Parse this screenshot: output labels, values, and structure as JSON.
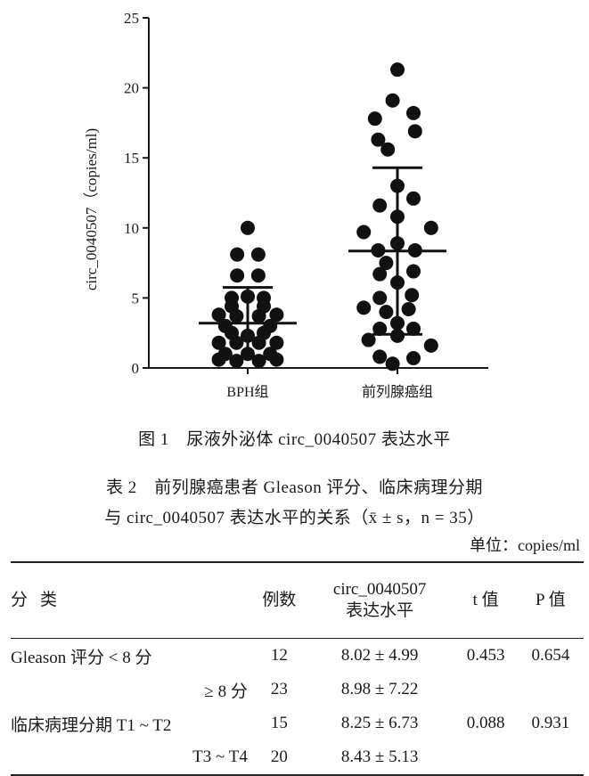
{
  "chart_data": {
    "type": "scatter",
    "ylabel": "circ_0040507（copies/ml)",
    "ylim": [
      0,
      25
    ],
    "yticks": [
      "0",
      "5",
      "10",
      "15",
      "20",
      "25"
    ],
    "categories": [
      "BPH组",
      "前列腺癌组"
    ],
    "groups": [
      {
        "name": "BPH组",
        "mean": 3.2,
        "sd_upper": 5.75,
        "sd_lower": 0.7,
        "points": [
          {
            "dx": 0,
            "y": 10.0
          },
          {
            "dx": -0.33,
            "y": 8.1
          },
          {
            "dx": 0.33,
            "y": 8.1
          },
          {
            "dx": -0.33,
            "y": 6.6
          },
          {
            "dx": 0.33,
            "y": 6.6
          },
          {
            "dx": -0.5,
            "y": 5.0
          },
          {
            "dx": 0.0,
            "y": 5.1
          },
          {
            "dx": 0.5,
            "y": 5.0
          },
          {
            "dx": -0.5,
            "y": 4.4
          },
          {
            "dx": 0.5,
            "y": 4.4
          },
          {
            "dx": -0.9,
            "y": 3.8
          },
          {
            "dx": -0.35,
            "y": 3.7
          },
          {
            "dx": 0.35,
            "y": 3.7
          },
          {
            "dx": 0.9,
            "y": 3.8
          },
          {
            "dx": -0.7,
            "y": 3.0
          },
          {
            "dx": 0.7,
            "y": 3.0
          },
          {
            "dx": -0.5,
            "y": 2.5
          },
          {
            "dx": 0.0,
            "y": 2.3
          },
          {
            "dx": 0.5,
            "y": 2.5
          },
          {
            "dx": -0.9,
            "y": 1.8
          },
          {
            "dx": -0.35,
            "y": 1.8
          },
          {
            "dx": 0.35,
            "y": 1.8
          },
          {
            "dx": 0.9,
            "y": 1.8
          },
          {
            "dx": -0.7,
            "y": 1.0
          },
          {
            "dx": 0.0,
            "y": 1.0
          },
          {
            "dx": 0.7,
            "y": 1.0
          },
          {
            "dx": -0.9,
            "y": 0.6
          },
          {
            "dx": -0.35,
            "y": 0.5
          },
          {
            "dx": 0.35,
            "y": 0.5
          },
          {
            "dx": 0.9,
            "y": 0.6
          }
        ]
      },
      {
        "name": "前列腺癌组",
        "mean": 8.35,
        "sd_upper": 14.3,
        "sd_lower": 2.4,
        "points": [
          {
            "dx": 0,
            "y": 21.3
          },
          {
            "dx": -0.15,
            "y": 19.1
          },
          {
            "dx": -0.7,
            "y": 17.8
          },
          {
            "dx": 0.5,
            "y": 18.2
          },
          {
            "dx": -0.6,
            "y": 16.3
          },
          {
            "dx": 0.55,
            "y": 16.9
          },
          {
            "dx": -0.3,
            "y": 15.6
          },
          {
            "dx": 0.0,
            "y": 13.0
          },
          {
            "dx": -0.55,
            "y": 11.6
          },
          {
            "dx": 0.5,
            "y": 12.1
          },
          {
            "dx": 0.0,
            "y": 10.8
          },
          {
            "dx": -1.05,
            "y": 9.7
          },
          {
            "dx": 1.05,
            "y": 10.0
          },
          {
            "dx": -0.6,
            "y": 8.4
          },
          {
            "dx": 0.0,
            "y": 8.9
          },
          {
            "dx": 0.55,
            "y": 8.4
          },
          {
            "dx": -0.35,
            "y": 7.5
          },
          {
            "dx": -0.55,
            "y": 6.7
          },
          {
            "dx": 0.5,
            "y": 6.9
          },
          {
            "dx": 0.0,
            "y": 6.1
          },
          {
            "dx": -0.55,
            "y": 5.0
          },
          {
            "dx": 0.45,
            "y": 5.2
          },
          {
            "dx": -1.05,
            "y": 4.3
          },
          {
            "dx": -0.35,
            "y": 4.0
          },
          {
            "dx": 0.35,
            "y": 4.2
          },
          {
            "dx": 0.0,
            "y": 3.2
          },
          {
            "dx": -0.55,
            "y": 2.8
          },
          {
            "dx": 0.5,
            "y": 2.8
          },
          {
            "dx": -0.9,
            "y": 2.0
          },
          {
            "dx": 0.0,
            "y": 2.3
          },
          {
            "dx": 1.05,
            "y": 1.6
          },
          {
            "dx": -0.55,
            "y": 0.8
          },
          {
            "dx": 0.5,
            "y": 0.7
          },
          {
            "dx": -0.15,
            "y": 0.3
          }
        ]
      }
    ]
  },
  "figure_caption": "图 1　尿液外泌体 circ_0040507 表达水平",
  "table": {
    "title_line1": "表 2　前列腺癌患者 Gleason 评分、临床病理分期",
    "title_line2": "与 circ_0040507 表达水平的关系（x̄ ± s，n = 35）",
    "unit": "单位：copies/ml",
    "headers": {
      "category": "分类",
      "count": "例数",
      "expr_line1": "circ_0040507",
      "expr_line2": "表达水平",
      "t": "t 值",
      "p": "P 值"
    },
    "rows": [
      {
        "category": "Gleason 评分 < 8 分",
        "count": "12",
        "value": "8.02 ± 4.99",
        "t": "0.453",
        "p": "0.654"
      },
      {
        "category": "≥ 8 分",
        "count": "23",
        "value": "8.98 ± 7.22",
        "t": "",
        "p": ""
      },
      {
        "category": "临床病理分期 T1 ~ T2",
        "count": "15",
        "value": "8.25 ± 6.73",
        "t": "0.088",
        "p": "0.931"
      },
      {
        "category": "T3 ~ T4",
        "count": "20",
        "value": "8.43 ± 5.13",
        "t": "",
        "p": ""
      }
    ]
  }
}
